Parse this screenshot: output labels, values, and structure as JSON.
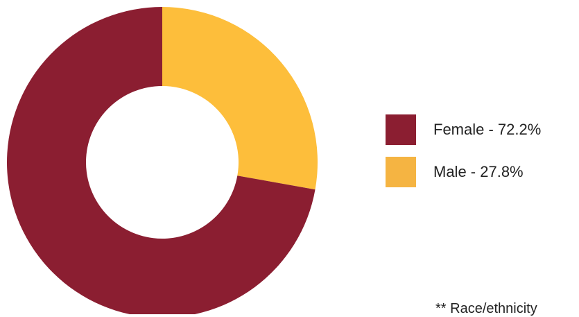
{
  "chart_data": {
    "type": "pie",
    "donut": true,
    "categories": [
      "Female",
      "Male"
    ],
    "values": [
      72.2,
      27.8
    ],
    "unit": "%",
    "colors": [
      "#8b1e31",
      "#fdbe3b"
    ],
    "legend": {
      "position": "right",
      "items": [
        {
          "label": "Female - 72.2%",
          "color": "#8b1e31"
        },
        {
          "label": "Male - 27.8%",
          "color": "#f5b442"
        }
      ]
    }
  },
  "footnote": "** Race/ethnicity"
}
